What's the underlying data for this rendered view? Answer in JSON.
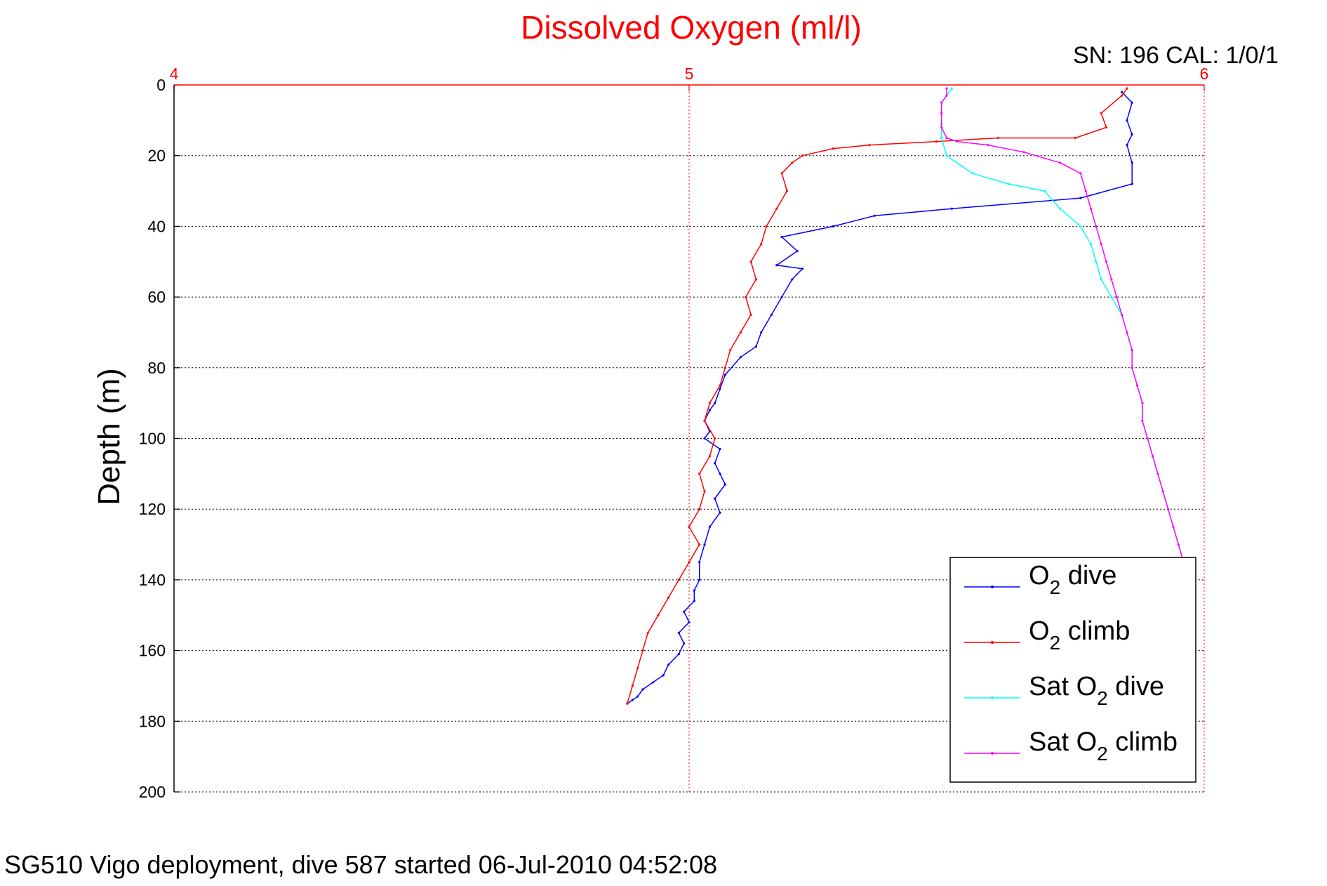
{
  "chart_data": {
    "type": "line",
    "title": "Dissolved Oxygen (ml/l)",
    "top_right_label": "SN: 196  CAL: 1/0/1",
    "footer": "SG510 Vigo deployment, dive 587 started 06-Jul-2010 04:52:08",
    "xlabel": "",
    "ylabel": "Depth (m)",
    "xlim": [
      4,
      6
    ],
    "ylim": [
      0,
      200
    ],
    "y_reversed": true,
    "x_axis_position": "top",
    "x_ticks": [
      "4",
      "5",
      "6"
    ],
    "y_ticks": [
      "0",
      "20",
      "40",
      "60",
      "80",
      "100",
      "120",
      "140",
      "160",
      "180",
      "200"
    ],
    "grid": true,
    "legend_position": "bottom-right",
    "colors": {
      "title": "#ff0000",
      "x_axis": "#ff0000",
      "grid_x": "#ff0000",
      "grid_y": "#000000"
    },
    "series": [
      {
        "name": "O2 dive",
        "legend_main": "O",
        "legend_sub": "2",
        "legend_rest": " dive",
        "color": "#0000ff",
        "x": [
          5.84,
          5.86,
          5.85,
          5.86,
          5.85,
          5.86,
          5.86,
          5.76,
          5.51,
          5.36,
          5.28,
          5.18,
          5.21,
          5.17,
          5.22,
          5.2,
          5.18,
          5.16,
          5.14,
          5.13,
          5.1,
          5.07,
          5.06,
          5.05,
          5.04,
          5.03,
          5.04,
          5.03,
          5.06,
          5.05,
          5.06,
          5.07,
          5.05,
          5.06,
          5.04,
          5.03,
          5.02,
          5.02,
          5.01,
          5.01,
          4.99,
          5.0,
          4.98,
          4.99,
          4.98,
          4.96,
          4.95,
          4.93,
          4.91,
          4.9,
          4.89,
          4.88,
          4.88
        ],
        "y": [
          2,
          5,
          10,
          14,
          17,
          22,
          28,
          32,
          35,
          37,
          40,
          43,
          47,
          51,
          52,
          55,
          60,
          65,
          70,
          74,
          77,
          82,
          86,
          90,
          92,
          95,
          98,
          100,
          103,
          107,
          110,
          113,
          117,
          121,
          125,
          130,
          135,
          140,
          143,
          146,
          149,
          152,
          155,
          158,
          161,
          164,
          167,
          169,
          171,
          173,
          174,
          175,
          175
        ]
      },
      {
        "name": "O2 climb",
        "legend_main": "O",
        "legend_sub": "2",
        "legend_rest": " climb",
        "color": "#ff0000",
        "x": [
          4.88,
          4.89,
          4.9,
          4.91,
          4.92,
          4.94,
          4.96,
          4.98,
          5.0,
          5.02,
          5.0,
          5.02,
          5.03,
          5.02,
          5.04,
          5.05,
          5.03,
          5.04,
          5.06,
          5.07,
          5.08,
          5.1,
          5.12,
          5.11,
          5.13,
          5.12,
          5.14,
          5.15,
          5.17,
          5.19,
          5.18,
          5.2,
          5.22,
          5.28,
          5.35,
          5.48,
          5.6,
          5.75,
          5.81,
          5.8,
          5.84,
          5.85
        ],
        "y": [
          175,
          170,
          165,
          160,
          155,
          150,
          145,
          140,
          135,
          130,
          125,
          120,
          115,
          110,
          105,
          100,
          95,
          90,
          85,
          80,
          75,
          70,
          65,
          60,
          55,
          50,
          45,
          40,
          35,
          30,
          25,
          22,
          20,
          18,
          17,
          16,
          15,
          15,
          12,
          8,
          3,
          1
        ],
        "markers": true
      },
      {
        "name": "Sat O2 dive",
        "legend_main": "Sat O",
        "legend_sub": "2",
        "legend_rest": " dive",
        "color": "#00ffff",
        "x": [
          5.51,
          5.5,
          5.49,
          5.49,
          5.49,
          5.49,
          5.5,
          5.55,
          5.62,
          5.69,
          5.72,
          5.76,
          5.78,
          5.79,
          5.8,
          5.82,
          5.84,
          5.85,
          5.86,
          5.86,
          5.87,
          5.88,
          5.88,
          5.89,
          5.9,
          5.91,
          5.92,
          5.93,
          5.94,
          5.95,
          5.96
        ],
        "y": [
          1,
          3,
          5,
          8,
          11,
          15,
          20,
          25,
          28,
          30,
          35,
          40,
          45,
          50,
          55,
          60,
          65,
          70,
          75,
          80,
          85,
          90,
          95,
          100,
          105,
          110,
          115,
          120,
          125,
          130,
          135
        ]
      },
      {
        "name": "Sat O2 climb",
        "legend_main": "Sat O",
        "legend_sub": "2",
        "legend_rest": " climb",
        "color": "#ff00ff",
        "x": [
          5.96,
          5.95,
          5.94,
          5.93,
          5.92,
          5.91,
          5.9,
          5.89,
          5.88,
          5.88,
          5.87,
          5.86,
          5.86,
          5.85,
          5.84,
          5.83,
          5.82,
          5.81,
          5.8,
          5.79,
          5.78,
          5.77,
          5.76,
          5.72,
          5.65,
          5.58,
          5.52,
          5.5,
          5.49,
          5.49,
          5.49,
          5.5,
          5.5
        ],
        "y": [
          135,
          130,
          125,
          120,
          115,
          110,
          105,
          100,
          95,
          90,
          85,
          80,
          75,
          70,
          65,
          60,
          55,
          50,
          45,
          40,
          35,
          30,
          25,
          22,
          19,
          17,
          16,
          15,
          12,
          8,
          5,
          3,
          1
        ]
      }
    ]
  }
}
